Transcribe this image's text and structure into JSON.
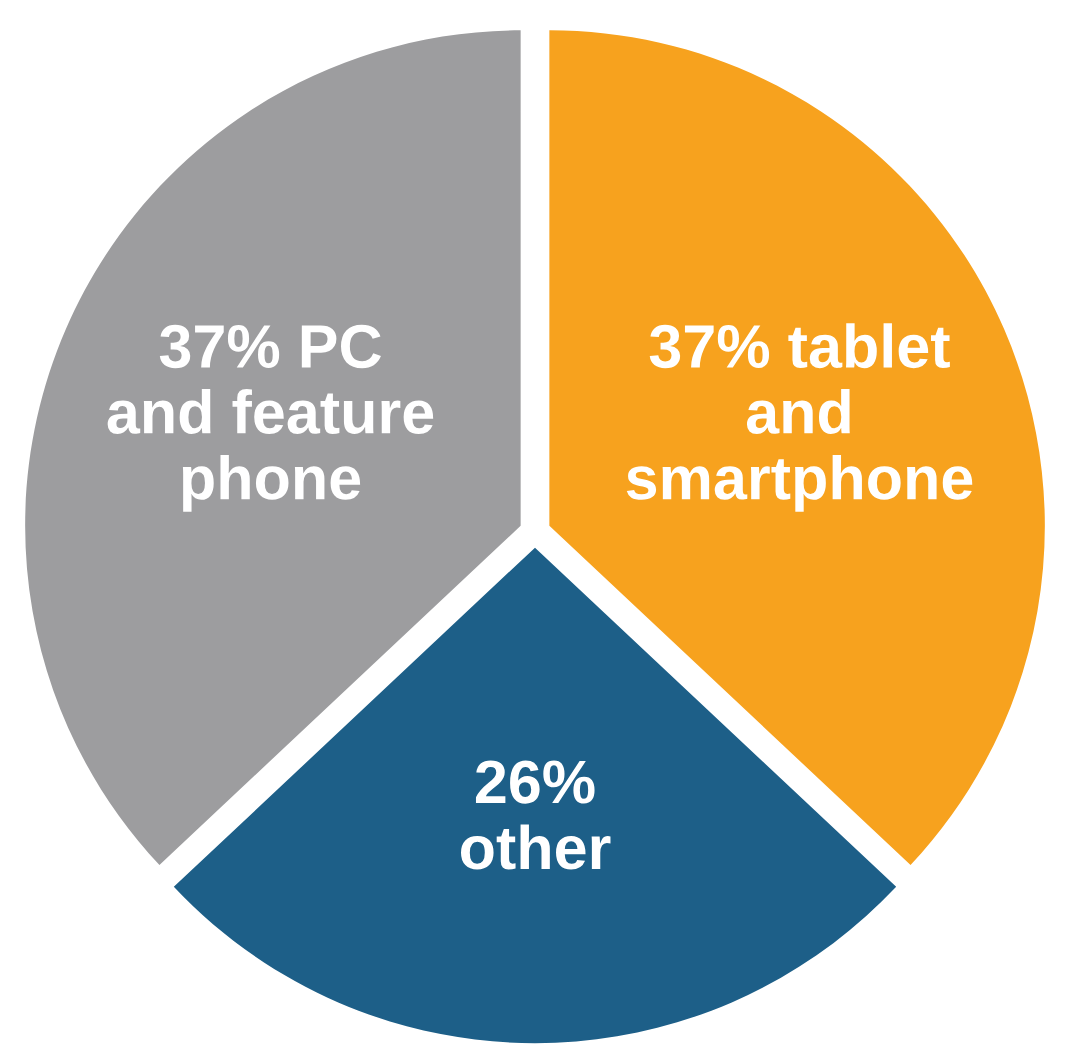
{
  "chart_data": {
    "type": "pie",
    "categories": [
      "37% tablet\nand\nsmartphone",
      "26%\nother",
      "37% PC\nand feature\nphone"
    ],
    "values": [
      37,
      26,
      37
    ],
    "colors": [
      "#f7a21e",
      "#1d5f88",
      "#9d9d9f"
    ],
    "legend": false
  }
}
